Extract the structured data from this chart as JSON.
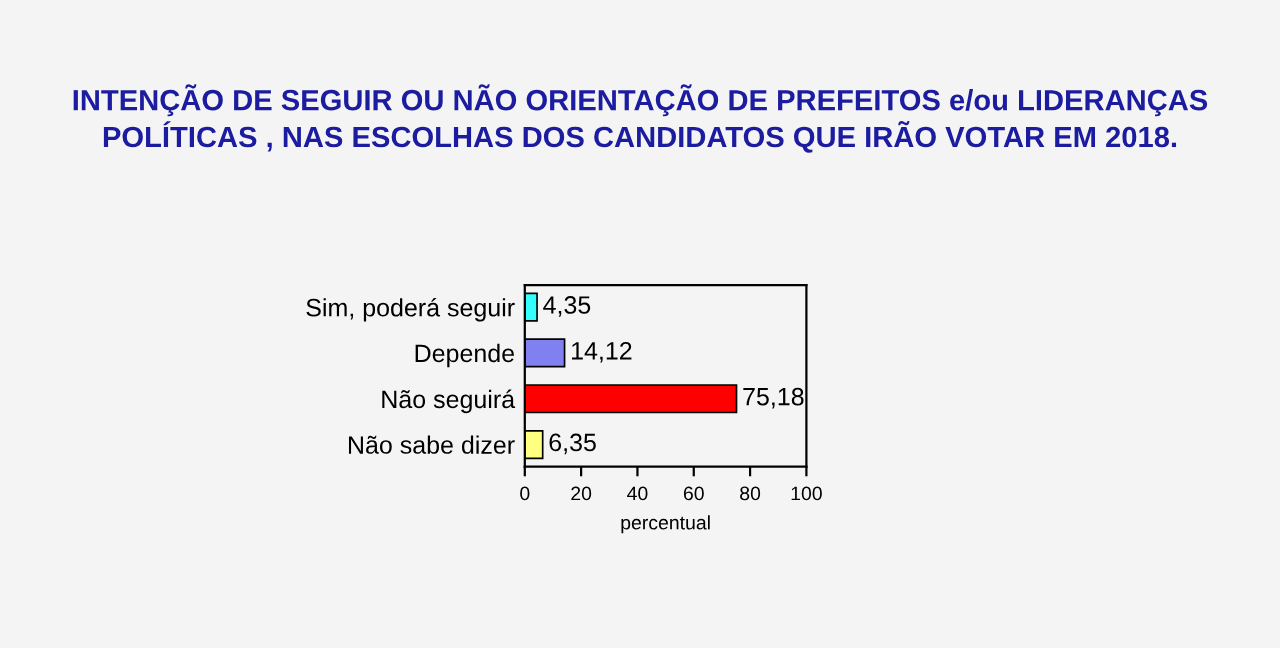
{
  "chart_data": {
    "type": "bar",
    "orientation": "horizontal",
    "title": "INTENÇÃO DE SEGUIR OU NÃO ORIENTAÇÃO DE PREFEITOS e/ou LIDERANÇAS POLÍTICAS , NAS ESCOLHAS DOS CANDIDATOS QUE IRÃO VOTAR EM 2018.",
    "categories": [
      "Sim, poderá seguir",
      "Depende",
      "Não seguirá",
      "Não sabe dizer"
    ],
    "values": [
      4.35,
      14.12,
      75.18,
      6.35
    ],
    "value_labels": [
      "4,35",
      "14,12",
      "75,18",
      "6,35"
    ],
    "colors": [
      "#33ffff",
      "#8080f0",
      "#ff0000",
      "#ffff80"
    ],
    "xlabel": "percentual",
    "xlim": [
      0,
      100
    ],
    "xticks": [
      0,
      20,
      40,
      60,
      80,
      100
    ],
    "grid": false
  }
}
